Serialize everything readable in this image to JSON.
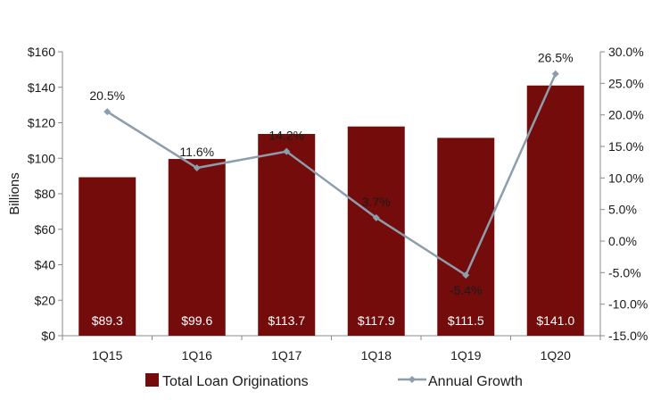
{
  "chart_data": {
    "type": "bar",
    "categories": [
      "1Q15",
      "1Q16",
      "1Q17",
      "1Q18",
      "1Q19",
      "1Q20"
    ],
    "series": [
      {
        "name": "Total Loan Originations",
        "type": "bar",
        "axis": "left",
        "values": [
          89.3,
          99.6,
          113.7,
          117.9,
          111.5,
          141.0
        ],
        "labels": [
          "$89.3",
          "$99.6",
          "$113.7",
          "$117.9",
          "$111.5",
          "$141.0"
        ],
        "color": "#740c0c"
      },
      {
        "name": "Annual Growth",
        "type": "line",
        "axis": "right",
        "values": [
          20.5,
          11.6,
          14.2,
          3.7,
          -5.4,
          26.5
        ],
        "labels": [
          "20.5%",
          "11.6%",
          "14.2%",
          "3.7%",
          "-5.4%",
          "26.5%"
        ],
        "color": "#8c9eab"
      }
    ],
    "ylabel": "Billions",
    "ylim_left": [
      0,
      160
    ],
    "ylim_right": [
      -15,
      30
    ],
    "left_ticks": [
      "$0",
      "$20",
      "$40",
      "$60",
      "$80",
      "$100",
      "$120",
      "$140",
      "$160"
    ],
    "right_ticks": [
      "-15.0%",
      "-10.0%",
      "-5.0%",
      "0.0%",
      "5.0%",
      "10.0%",
      "15.0%",
      "20.0%",
      "25.0%",
      "30.0%"
    ],
    "legend_position": "bottom",
    "grid": false
  }
}
